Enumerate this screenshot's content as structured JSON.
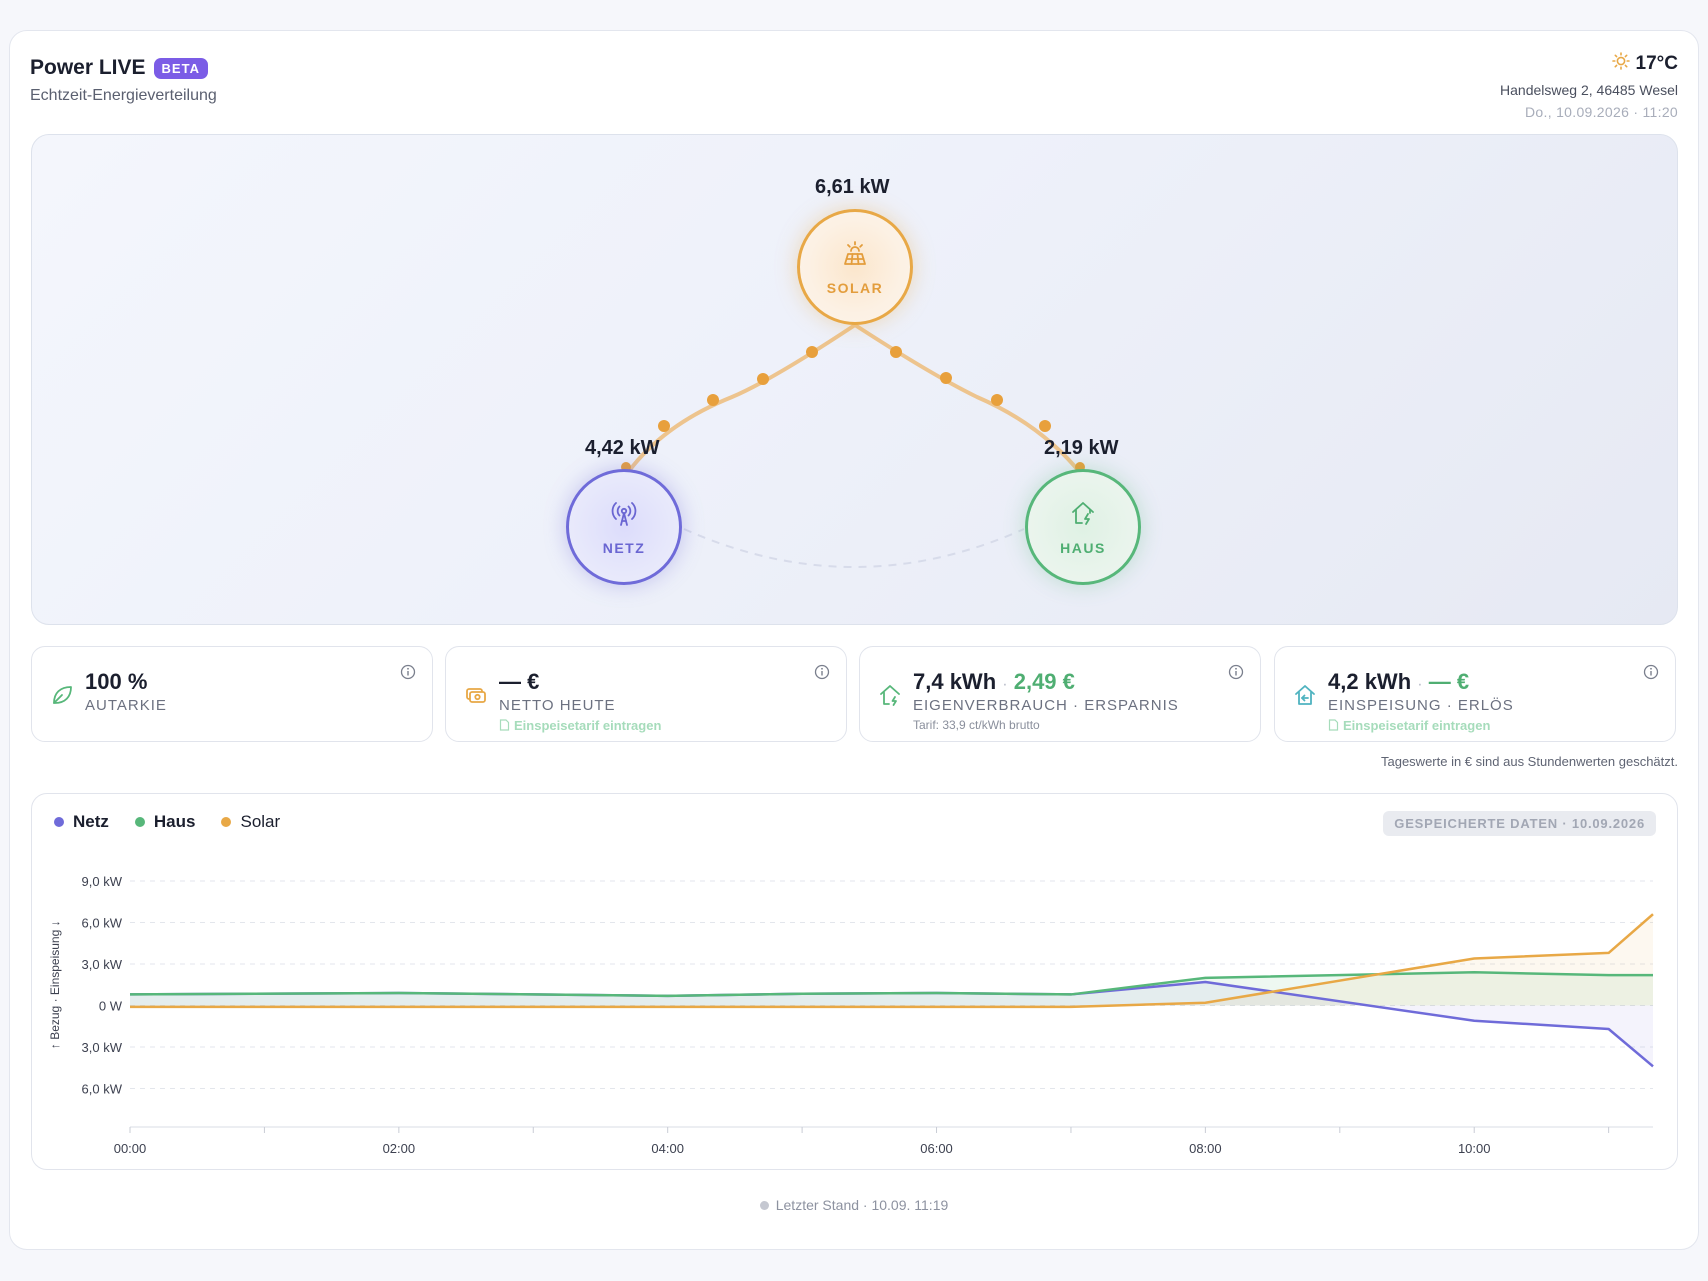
{
  "header": {
    "title": "Power LIVE",
    "badge": "BETA",
    "subtitle": "Echtzeit-Energieverteilung",
    "temperature": "17°C",
    "address": "Handelsweg 2, 46485 Wesel",
    "datetime": "Do., 10.09.2026 · 11:20",
    "weather_icon": "sun-icon"
  },
  "flow": {
    "solar": {
      "label": "SOLAR",
      "power": "6,61 kW",
      "icon": "solar-panel-icon",
      "color": "#e8a846"
    },
    "netz": {
      "label": "NETZ",
      "power": "4,42 kW",
      "icon": "antenna-icon",
      "color": "#6f6bd9"
    },
    "haus": {
      "label": "HAUS",
      "power": "2,19 kW",
      "icon": "house-bolt-icon",
      "color": "#57b77a"
    }
  },
  "stats": [
    {
      "value": "100 %",
      "label": "AUTARKIE",
      "icon": "leaf-icon"
    },
    {
      "value": "— €",
      "label": "NETTO HEUTE",
      "link": "Einspeisetarif eintragen",
      "icon": "money-icon"
    },
    {
      "value": "7,4 kWh",
      "value_extra": "2,49 €",
      "label": "EIGENVERBRAUCH · ERSPARNIS",
      "sub": "Tarif: 33,9 ct/kWh brutto",
      "icon": "house-bolt-icon"
    },
    {
      "value": "4,2 kWh",
      "value_extra": "— €",
      "label": "EINSPEISUNG · ERLÖS",
      "link": "Einspeisetarif eintragen",
      "icon": "house-export-icon"
    }
  ],
  "separator": "·",
  "note": "Tageswerte in € sind aus Stundenwerten geschätzt.",
  "chart_badge": "GESPEICHERTE DATEN · 10.09.2026",
  "footer": "Letzter Stand · 10.09. 11:19",
  "chart_data": {
    "type": "line",
    "ylabel": "↑ Bezug · Einspeisung ↓",
    "y_ticks": [
      "9,0 kW",
      "6,0 kW",
      "3,0 kW",
      "0 W",
      "3,0 kW",
      "6,0 kW"
    ],
    "x_ticks": [
      "00:00",
      "02:00",
      "04:00",
      "06:00",
      "08:00",
      "10:00"
    ],
    "xlim_hours": [
      0,
      11.33
    ],
    "ylim_kw": [
      -6,
      9
    ],
    "grid": true,
    "legend_position": "top-left",
    "x": [
      0,
      2,
      4,
      5,
      6,
      7,
      8,
      10,
      11,
      11.33
    ],
    "series": [
      {
        "name": "Netz",
        "color": "#6f6bd9",
        "values": [
          0.8,
          0.9,
          0.7,
          0.85,
          0.9,
          0.8,
          1.7,
          -1.1,
          -1.7,
          -4.4
        ]
      },
      {
        "name": "Haus",
        "color": "#57b77a",
        "values": [
          0.8,
          0.9,
          0.7,
          0.85,
          0.9,
          0.8,
          2.0,
          2.4,
          2.2,
          2.2
        ]
      },
      {
        "name": "Solar",
        "color": "#e8a846",
        "values": [
          -0.1,
          -0.1,
          -0.1,
          -0.1,
          -0.1,
          -0.1,
          0.2,
          3.4,
          3.8,
          6.6
        ]
      }
    ]
  }
}
